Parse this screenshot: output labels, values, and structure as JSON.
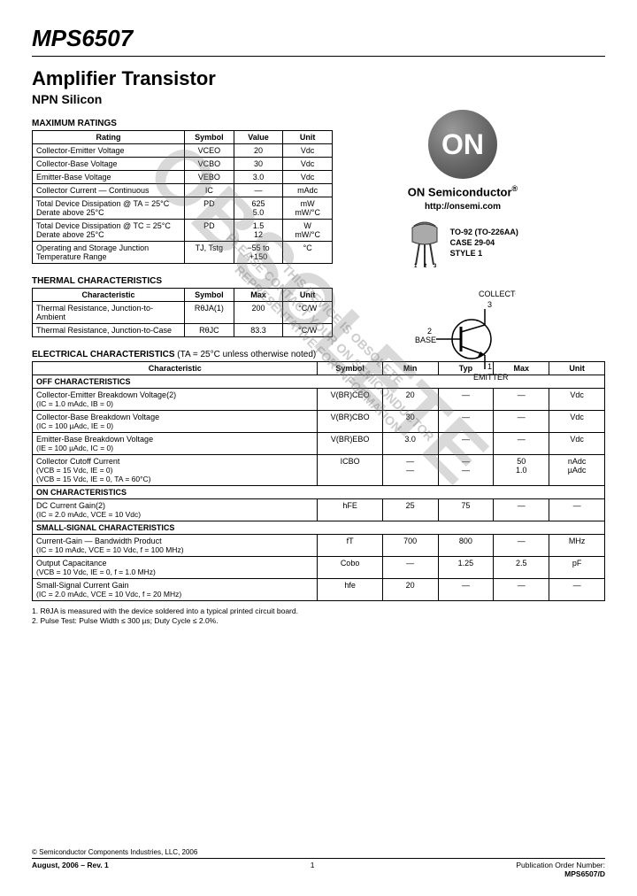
{
  "header": {
    "part_number": "MPS6507",
    "title": "Amplifier Transistor",
    "subtitle": "NPN Silicon",
    "brand": "ON Semiconductor",
    "logo_text": "ON",
    "url": "http://onsemi.com",
    "package_line1": "TO-92 (TO-226AA)",
    "package_line2": "CASE 29-04",
    "package_line3": "STYLE 1",
    "pin_collector": "COLLECTOR",
    "pin_base": "BASE",
    "pin_emitter": "EMITTER"
  },
  "watermark": {
    "big": "OBSOLETE",
    "small1": "THIS DEVICE IS OBSOLETE",
    "small2": "PLEASE CONTACT YOUR ON SEMICONDUCTOR",
    "small3": "REPRESENTATIVE FOR INFORMATION"
  },
  "sections": {
    "max": "MAXIMUM RATINGS",
    "thermal": "THERMAL CHARACTERISTICS",
    "elec": "ELECTRICAL CHARACTERISTICS",
    "elec_cond": "(TA = 25°C unless otherwise noted)",
    "off": "OFF CHARACTERISTICS",
    "on": "ON CHARACTERISTICS",
    "small": "SMALL-SIGNAL CHARACTERISTICS"
  },
  "col": {
    "rating": "Rating",
    "char": "Characteristic",
    "symbol": "Symbol",
    "value": "Value",
    "unit": "Unit",
    "max": "Max",
    "min": "Min",
    "typ": "Typ"
  },
  "max_rows": [
    {
      "r": "Collector-Emitter Voltage",
      "s": "VCEO",
      "v": "20",
      "u": "Vdc"
    },
    {
      "r": "Collector-Base Voltage",
      "s": "VCBO",
      "v": "30",
      "u": "Vdc"
    },
    {
      "r": "Emitter-Base Voltage",
      "s": "VEBO",
      "v": "3.0",
      "u": "Vdc"
    },
    {
      "r": "Collector Current — Continuous",
      "s": "IC",
      "v": "—",
      "u": "mAdc"
    },
    {
      "r": "Total Device Dissipation @ TA = 25°C\nDerate above 25°C",
      "s": "PD",
      "v": "625\n5.0",
      "u": "mW\nmW/°C"
    },
    {
      "r": "Total Device Dissipation @ TC = 25°C\nDerate above 25°C",
      "s": "PD",
      "v": "1.5\n12",
      "u": "W\nmW/°C"
    },
    {
      "r": "Operating and Storage Junction Temperature Range",
      "s": "TJ, Tstg",
      "v": "−55 to +150",
      "u": "°C"
    }
  ],
  "th_rows": [
    {
      "r": "Thermal Resistance, Junction-to-Ambient",
      "s": "RθJA(1)",
      "v": "200",
      "u": "°C/W"
    },
    {
      "r": "Thermal Resistance, Junction-to-Case",
      "s": "RθJC",
      "v": "83.3",
      "u": "°C/W"
    }
  ],
  "el_rows": {
    "off": [
      {
        "r": "Collector-Emitter Breakdown Voltage(2)",
        "c": "(IC = 1.0 mAdc, IB = 0)",
        "s": "V(BR)CEO",
        "min": "20",
        "typ": "—",
        "max": "—",
        "u": "Vdc"
      },
      {
        "r": "Collector-Base Breakdown Voltage",
        "c": "(IC = 100 µAdc, IE = 0)",
        "s": "V(BR)CBO",
        "min": "30",
        "typ": "—",
        "max": "—",
        "u": "Vdc"
      },
      {
        "r": "Emitter-Base Breakdown Voltage",
        "c": "(IE = 100 µAdc, IC = 0)",
        "s": "V(BR)EBO",
        "min": "3.0",
        "typ": "—",
        "max": "—",
        "u": "Vdc"
      },
      {
        "r": "Collector Cutoff Current",
        "c": "(VCB = 15 Vdc, IE = 0)\n(VCB = 15 Vdc, IE = 0, TA = 60°C)",
        "s": "ICBO",
        "min": "—\n—",
        "typ": "—\n—",
        "max": "50\n1.0",
        "u": "nAdc\nµAdc"
      }
    ],
    "on": [
      {
        "r": "DC Current Gain(2)",
        "c": "(IC = 2.0 mAdc, VCE = 10 Vdc)",
        "s": "hFE",
        "min": "25",
        "typ": "75",
        "max": "—",
        "u": "—"
      }
    ],
    "small": [
      {
        "r": "Current-Gain — Bandwidth Product",
        "c": "(IC = 10 mAdc, VCE = 10 Vdc, f = 100 MHz)",
        "s": "fT",
        "min": "700",
        "typ": "800",
        "max": "—",
        "u": "MHz"
      },
      {
        "r": "Output Capacitance",
        "c": "(VCB = 10 Vdc, IE = 0, f = 1.0 MHz)",
        "s": "Cobo",
        "min": "—",
        "typ": "1.25",
        "max": "2.5",
        "u": "pF"
      },
      {
        "r": "Small-Signal Current Gain",
        "c": "(IC = 2.0 mAdc, VCE = 10 Vdc, f = 20 MHz)",
        "s": "hfe",
        "min": "20",
        "typ": "—",
        "max": "—",
        "u": "—"
      }
    ]
  },
  "notes": {
    "n1": "1. RθJA is measured with the device soldered into a typical printed circuit board.",
    "n2": "2. Pulse Test: Pulse Width ≤ 300 µs; Duty Cycle ≤ 2.0%."
  },
  "footer": {
    "copyright": "© Semiconductor Components Industries, LLC, 2006",
    "date": "August, 2006 – Rev. 1",
    "page": "1",
    "pub_label": "Publication Order Number:",
    "pub_num": "MPS6507/D"
  },
  "colors": {
    "text": "#000000",
    "watermark": "#808080",
    "logo_grad_light": "#999999",
    "logo_grad_dark": "#444444"
  }
}
